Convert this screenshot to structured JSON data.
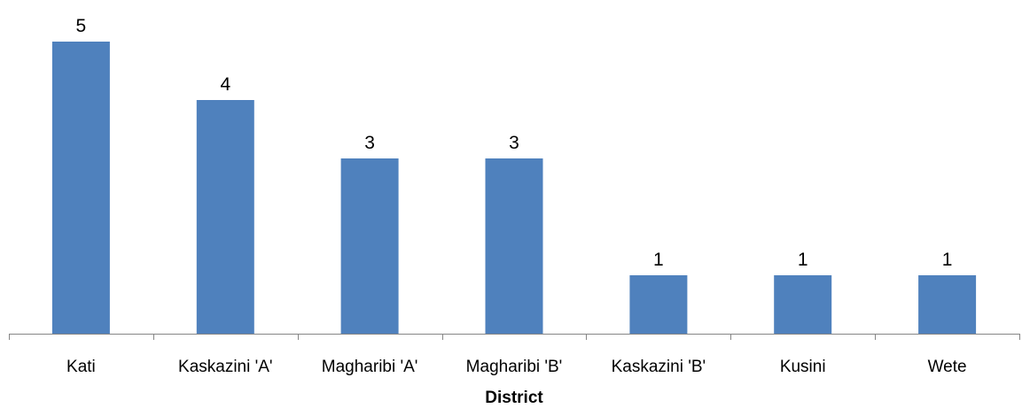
{
  "chart_data": {
    "type": "bar",
    "title": "",
    "xlabel": "District",
    "ylabel": "",
    "categories": [
      "Kati",
      "Kaskazini 'A'",
      "Magharibi 'A'",
      "Magharibi 'B'",
      "Kaskazini 'B'",
      "Kusini",
      "Wete"
    ],
    "values": [
      5,
      4,
      3,
      3,
      1,
      1,
      1
    ],
    "ylim": [
      0,
      5.5
    ],
    "grid": false,
    "legend": "none",
    "bar_color": "#4F81BD",
    "axis_color": "#868686"
  }
}
